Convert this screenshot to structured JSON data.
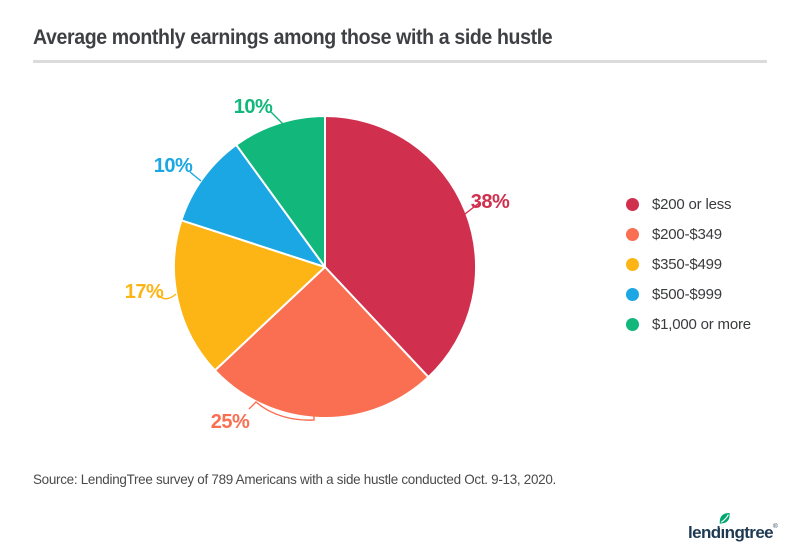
{
  "header": {
    "title": "Average monthly earnings among those with a side hustle"
  },
  "chart_data": {
    "type": "pie",
    "title": "Average monthly earnings among those with a side hustle",
    "categories": [
      "$200 or less",
      "$200-$349",
      "$350-$499",
      "$500-$999",
      "$1,000 or more"
    ],
    "values": [
      38,
      25,
      17,
      10,
      10
    ],
    "value_labels": [
      "38%",
      "25%",
      "17%",
      "10%",
      "10%"
    ],
    "colors": [
      "#D02F4E",
      "#FA6E51",
      "#FCB515",
      "#1BA7E3",
      "#12B77B"
    ],
    "legend_position": "right",
    "start_angle_deg": 0,
    "direction": "clockwise",
    "units": "%"
  },
  "source": {
    "text": "Source: LendingTree survey of 789 Americans with a side hustle conducted Oct. 9-13, 2020."
  },
  "footer": {
    "logo_text": "lendingtree",
    "registered_mark": "®",
    "logo_color": "#1E3A52",
    "leaf_color": "#00A76E"
  }
}
